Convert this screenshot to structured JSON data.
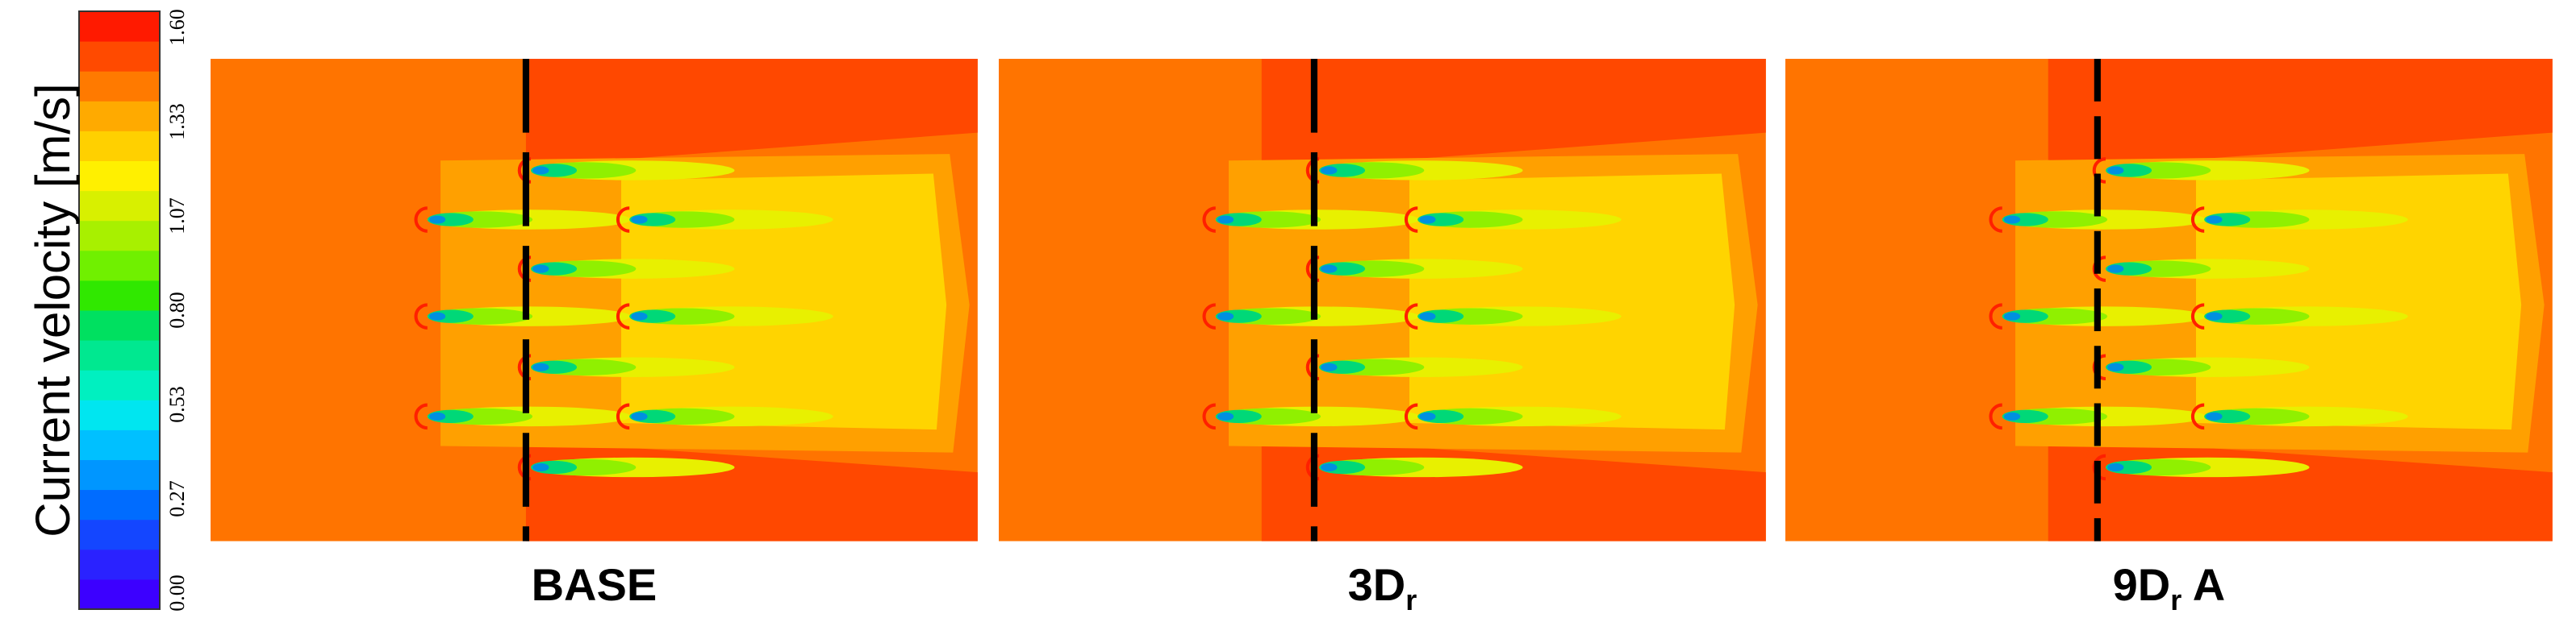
{
  "colorbar": {
    "label": "Current velocity [m/s]",
    "ticks": [
      "0.00",
      "0.27",
      "0.53",
      "0.80",
      "1.07",
      "1.33",
      "1.60"
    ]
  },
  "panels": [
    {
      "label": "BASE"
    },
    {
      "label": "3D",
      "sub": "r"
    },
    {
      "label": "9D",
      "sub": "r",
      "suffix": " A"
    }
  ]
}
